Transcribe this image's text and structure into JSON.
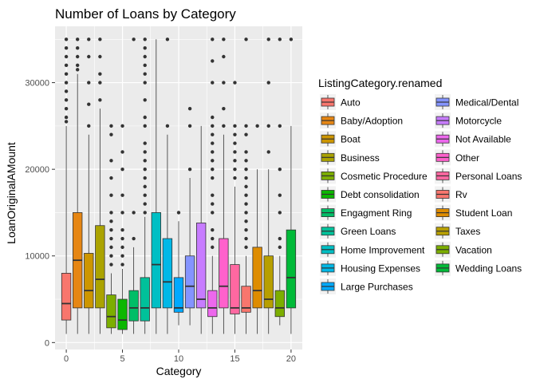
{
  "chart_data": {
    "type": "boxplot",
    "title": "Number of Loans by Category",
    "xlabel": "Category",
    "ylabel": "LoanOriginalAMount",
    "xlim": [
      -1,
      21
    ],
    "ylim": [
      -800,
      36500
    ],
    "x_ticks": [
      0,
      5,
      10,
      15,
      20
    ],
    "y_ticks": [
      0,
      10000,
      20000,
      30000
    ],
    "grid": true,
    "legend": {
      "title": "ListingCategory.renamed",
      "placement": "right",
      "columns": 2
    },
    "series": [
      {
        "name": "Auto",
        "x": 0,
        "color": "#F8766D",
        "q1": 2600,
        "median": 4500,
        "q3": 8000,
        "lower": 1000,
        "upper": 25000,
        "outliers": [
          25500,
          26000,
          27000,
          28000,
          29000,
          30000,
          31000,
          32000,
          33000,
          34000,
          35000
        ]
      },
      {
        "name": "Baby/Adoption",
        "x": 1,
        "color": "#E68613",
        "q1": 4000,
        "median": 9500,
        "q3": 15000,
        "lower": 1000,
        "upper": 31000,
        "outliers": [
          31500,
          32000,
          33000,
          34000,
          35000
        ]
      },
      {
        "name": "Boat",
        "x": 2,
        "color": "#CD9600",
        "q1": 4000,
        "median": 6000,
        "q3": 10300,
        "lower": 1000,
        "upper": 24000,
        "outliers": [
          25000,
          27500,
          30000,
          33000,
          35000
        ]
      },
      {
        "name": "Business",
        "x": 3,
        "color": "#ABA300",
        "q1": 4000,
        "median": 7300,
        "q3": 13500,
        "lower": 1000,
        "upper": 27000,
        "outliers": [
          28000,
          30000,
          31000,
          33000,
          35000
        ]
      },
      {
        "name": "Cosmetic Procedure",
        "x": 4,
        "color": "#7CAE00",
        "q1": 1700,
        "median": 3000,
        "q3": 5500,
        "lower": 1000,
        "upper": 8000,
        "outliers": [
          9000,
          10000,
          11000,
          12000,
          13000,
          14000,
          15000,
          17000,
          19000,
          21000,
          24000,
          25000
        ]
      },
      {
        "name": "Debt consolidation",
        "x": 5,
        "color": "#0CB702",
        "q1": 1500,
        "median": 2600,
        "q3": 5000,
        "lower": 1000,
        "upper": 8500,
        "outliers": [
          9000,
          10000,
          11000,
          12000,
          13000,
          15000,
          17000,
          20000,
          22000,
          25000
        ]
      },
      {
        "name": "Engagment Ring",
        "x": 6,
        "color": "#00BE67",
        "q1": 2500,
        "median": 4000,
        "q3": 6000,
        "lower": 1000,
        "upper": 11000,
        "outliers": [
          12000,
          15000,
          35000
        ]
      },
      {
        "name": "Green Loans",
        "x": 7,
        "color": "#00C19A",
        "q1": 2500,
        "median": 4000,
        "q3": 7500,
        "lower": 1000,
        "upper": 14500,
        "outliers": [
          15000,
          16000,
          17000,
          18000,
          19000,
          20000,
          21000,
          22000,
          23000,
          25000,
          26000,
          28000,
          30000,
          31000,
          32000,
          33000,
          34000,
          35000
        ]
      },
      {
        "name": "Home Improvement",
        "x": 8,
        "color": "#00BFC4",
        "q1": 4000,
        "median": 9000,
        "q3": 15000,
        "lower": 1000,
        "upper": 35000,
        "outliers": []
      },
      {
        "name": "Housing Expenses",
        "x": 9,
        "color": "#00B8E7",
        "q1": 4000,
        "median": 7000,
        "q3": 12000,
        "lower": 1000,
        "upper": 24000,
        "outliers": [
          25000,
          35000
        ]
      },
      {
        "name": "Large Purchases",
        "x": 10,
        "color": "#00A9FF",
        "q1": 3500,
        "median": 4000,
        "q3": 7500,
        "lower": 2000,
        "upper": 14000,
        "outliers": [
          15000
        ]
      },
      {
        "name": "Medical/Dental",
        "x": 11,
        "color": "#8494FF",
        "q1": 4000,
        "median": 6500,
        "q3": 10000,
        "lower": 2000,
        "upper": 19000,
        "outliers": [
          20000,
          25000,
          27000
        ]
      },
      {
        "name": "Motorcycle",
        "x": 12,
        "color": "#C77CFF",
        "q1": 4000,
        "median": 5000,
        "q3": 13800,
        "lower": 1000,
        "upper": 25000,
        "outliers": []
      },
      {
        "name": "Not Available",
        "x": 13,
        "color": "#ED68ED",
        "q1": 3000,
        "median": 4000,
        "q3": 6000,
        "lower": 1000,
        "upper": 10000,
        "outliers": [
          11000,
          12000,
          13000,
          15000,
          16000,
          17000,
          19000,
          20000,
          21000,
          22000,
          23000,
          24000,
          25000,
          26000,
          30000,
          32500,
          35000
        ]
      },
      {
        "name": "Other",
        "x": 14,
        "color": "#FF61CC",
        "q1": 4000,
        "median": 6500,
        "q3": 12000,
        "lower": 1000,
        "upper": 24000,
        "outliers": [
          25000,
          27000,
          30000,
          33000,
          35000
        ]
      },
      {
        "name": "Personal Loans",
        "x": 15,
        "color": "#FF68A1",
        "q1": 3300,
        "median": 4000,
        "q3": 9000,
        "lower": 1000,
        "upper": 18000,
        "outliers": [
          19000,
          20000,
          21000,
          22000,
          23000,
          24000,
          25000,
          30000
        ]
      },
      {
        "name": "Rv",
        "x": 16,
        "color": "#F8766D",
        "q1": 3500,
        "median": 4000,
        "q3": 6500,
        "lower": 1000,
        "upper": 10000,
        "outliers": [
          11000,
          12000,
          13000,
          14000,
          15000,
          16000,
          17000,
          18000,
          19000,
          20000,
          21000,
          22000,
          24000,
          25000,
          35000
        ]
      },
      {
        "name": "Student Loan",
        "x": 17,
        "color": "#DE8C00",
        "q1": 4000,
        "median": 6000,
        "q3": 11000,
        "lower": 1000,
        "upper": 20000,
        "outliers": [
          25000
        ]
      },
      {
        "name": "Taxes",
        "x": 18,
        "color": "#B79F00",
        "q1": 4000,
        "median": 5000,
        "q3": 10000,
        "lower": 1000,
        "upper": 20000,
        "outliers": [
          22000,
          25000,
          30000,
          35000
        ]
      },
      {
        "name": "Vacation",
        "x": 19,
        "color": "#7CAE00",
        "q1": 3000,
        "median": 4000,
        "q3": 6000,
        "lower": 2000,
        "upper": 10000,
        "outliers": [
          11000,
          12000,
          15000,
          17000,
          20000,
          25000,
          35000
        ]
      },
      {
        "name": "Wedding Loans",
        "x": 20,
        "color": "#00BA38",
        "q1": 4000,
        "median": 7500,
        "q3": 13000,
        "lower": 1000,
        "upper": 25000,
        "outliers": [
          35000
        ]
      }
    ]
  }
}
